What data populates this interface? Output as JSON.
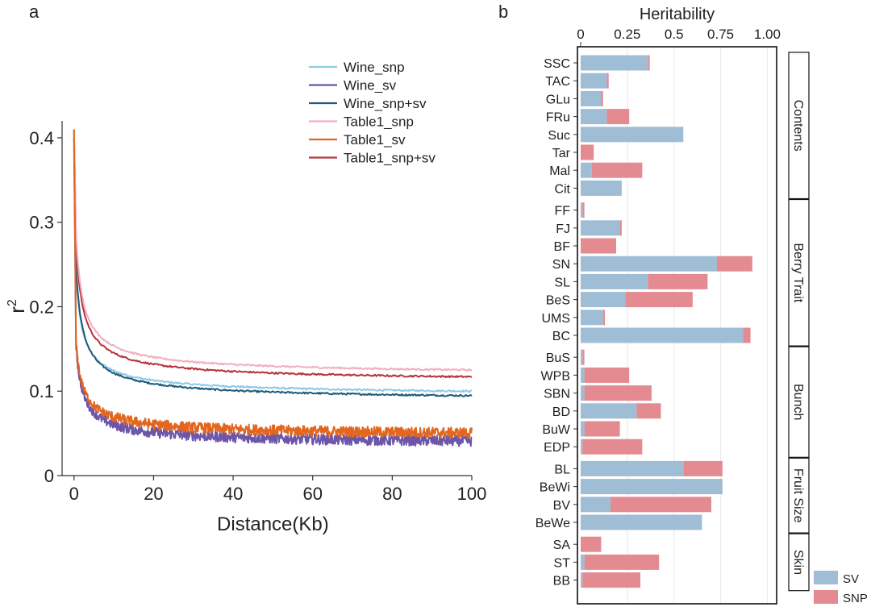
{
  "panels": {
    "a_label": "a",
    "b_label": "b"
  },
  "colors": {
    "Wine_snp": "#8ec9e6",
    "Wine_sv": "#6d55a8",
    "Wine_snp+sv": "#1e5b78",
    "Table1_snp": "#f2aebf",
    "Table1_sv": "#e2661e",
    "Table1_snp+sv": "#b7333c",
    "SV": "#9fbdd4",
    "SNP": "#e48b92"
  },
  "chart_data": [
    {
      "type": "line",
      "panel": "a",
      "title": "",
      "xlabel": "Distance(Kb)",
      "ylabel": "r",
      "ylabel_superscript": "2",
      "xlim": [
        -3,
        100
      ],
      "ylim": [
        0,
        0.42
      ],
      "xticks": [
        0,
        20,
        40,
        60,
        80,
        100
      ],
      "xtick_labels": [
        "0",
        "20",
        "40",
        "60",
        "80",
        "100"
      ],
      "yticks": [
        0,
        0.1,
        0.2,
        0.3,
        0.4
      ],
      "ytick_labels": [
        "0",
        "0.1",
        "0.2",
        "0.3",
        "0.4"
      ],
      "legend_position": "top-right",
      "series": [
        {
          "name": "Wine_snp",
          "start": 0.4,
          "at_0_5": 0.24,
          "end": 0.094,
          "noise": 0.001
        },
        {
          "name": "Wine_sv",
          "start": 0.39,
          "at_0_5": 0.155,
          "end": 0.036,
          "noise": 0.0035
        },
        {
          "name": "Wine_snp+sv",
          "start": 0.4,
          "at_0_5": 0.25,
          "end": 0.088,
          "noise": 0.001
        },
        {
          "name": "Table1_snp",
          "start": 0.41,
          "at_0_5": 0.29,
          "end": 0.118,
          "noise": 0.001
        },
        {
          "name": "Table1_sv",
          "start": 0.41,
          "at_0_5": 0.16,
          "end": 0.046,
          "noise": 0.0035
        },
        {
          "name": "Table1_snp+sv",
          "start": 0.41,
          "at_0_5": 0.28,
          "end": 0.11,
          "noise": 0.001
        }
      ]
    },
    {
      "type": "bar",
      "panel": "b",
      "orientation": "horizontal",
      "stacked": true,
      "title": "Heritability",
      "xlim": [
        0,
        1.05
      ],
      "xticks": [
        0,
        0.25,
        0.5,
        0.75,
        1.0
      ],
      "xtick_labels": [
        "0",
        "0.25",
        "0.5",
        "0.75",
        "1.00"
      ],
      "legend": [
        "SV",
        "SNP"
      ],
      "legend_position": "bottom-right",
      "groups": [
        {
          "name": "Contents",
          "traits": [
            "SSC",
            "TAC",
            "GLu",
            "FRu",
            "Suc",
            "Tar",
            "Mal",
            "Cit"
          ]
        },
        {
          "name": "Berry Trait",
          "traits": [
            "FF",
            "FJ",
            "BF",
            "SN",
            "SL",
            "BeS",
            "UMS",
            "BC"
          ]
        },
        {
          "name": "Bunch",
          "traits": [
            "BuS",
            "WPB",
            "SBN",
            "BD",
            "BuW",
            "EDP"
          ]
        },
        {
          "name": "Fruit Size",
          "traits": [
            "BL",
            "BeWi",
            "BV",
            "BeWe"
          ]
        },
        {
          "name": "Skin",
          "traits": [
            "SA",
            "ST",
            "BB"
          ]
        }
      ],
      "categories": [
        "SSC",
        "TAC",
        "GLu",
        "FRu",
        "Suc",
        "Tar",
        "Mal",
        "Cit",
        "FF",
        "FJ",
        "BF",
        "SN",
        "SL",
        "BeS",
        "UMS",
        "BC",
        "BuS",
        "WPB",
        "SBN",
        "BD",
        "BuW",
        "EDP",
        "BL",
        "BeWi",
        "BV",
        "BeWe",
        "SA",
        "ST",
        "BB"
      ],
      "series": [
        {
          "name": "SV",
          "values": [
            0.36,
            0.14,
            0.11,
            0.14,
            0.55,
            0.0,
            0.06,
            0.22,
            0.01,
            0.21,
            0.0,
            0.73,
            0.36,
            0.24,
            0.12,
            0.87,
            0.01,
            0.02,
            0.02,
            0.3,
            0.02,
            0.01,
            0.55,
            0.76,
            0.16,
            0.65,
            0.0,
            0.02,
            0.01
          ]
        },
        {
          "name": "SNP",
          "values": [
            0.01,
            0.01,
            0.01,
            0.12,
            0.0,
            0.07,
            0.27,
            0.0,
            0.01,
            0.01,
            0.19,
            0.19,
            0.32,
            0.36,
            0.01,
            0.04,
            0.01,
            0.24,
            0.36,
            0.13,
            0.19,
            0.32,
            0.21,
            0.0,
            0.54,
            0.0,
            0.11,
            0.4,
            0.31
          ]
        }
      ]
    }
  ]
}
